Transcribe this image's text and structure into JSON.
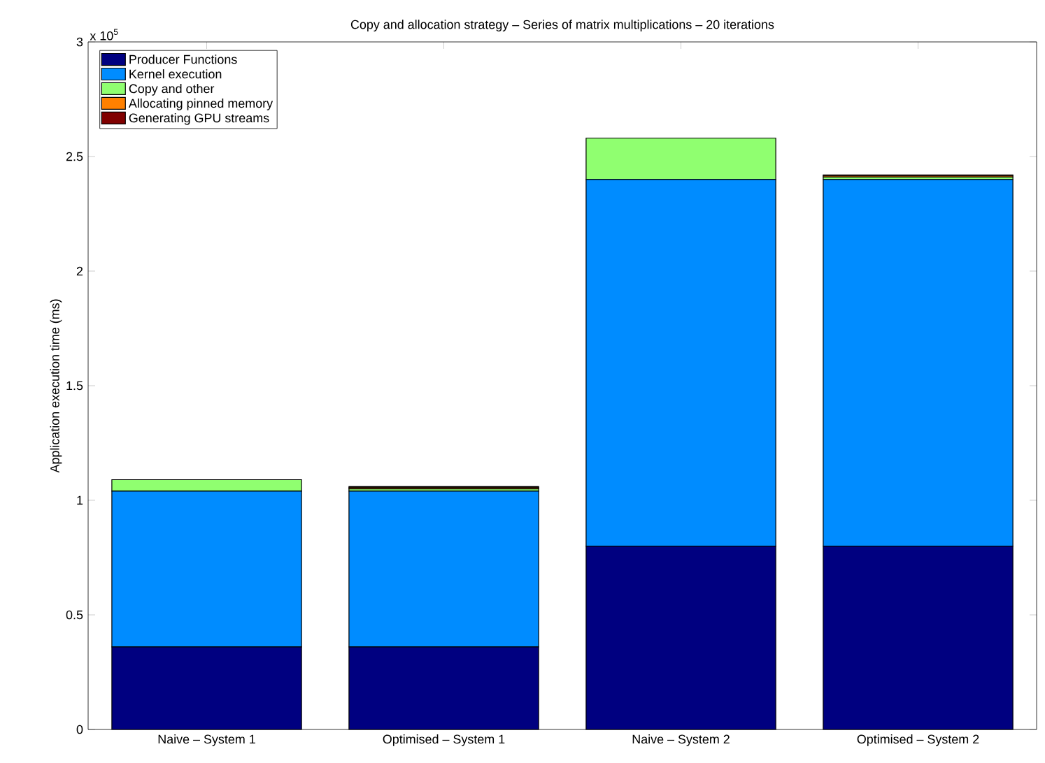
{
  "chart_data": {
    "type": "bar",
    "stacked": true,
    "title": "Copy and allocation strategy – Series of matrix multiplications – 20 iterations",
    "ylabel": "Application execution time (ms)",
    "categories": [
      "Naive – System 1",
      "Optimised – System 1",
      "Naive – System 2",
      "Optimised – System 2"
    ],
    "series": [
      {
        "name": "Producer Functions",
        "color": "#000080",
        "values": [
          0.36,
          0.36,
          0.8,
          0.8
        ]
      },
      {
        "name": "Kernel execution",
        "color": "#008cff",
        "values": [
          0.68,
          0.68,
          1.6,
          1.6
        ]
      },
      {
        "name": "Copy and other",
        "color": "#90ff70",
        "values": [
          0.05,
          0.01,
          0.18,
          0.01
        ]
      },
      {
        "name": "Allocating pinned memory",
        "color": "#ff8000",
        "values": [
          0,
          0.005,
          0,
          0.005
        ]
      },
      {
        "name": "Generating GPU streams",
        "color": "#800000",
        "values": [
          0,
          0.005,
          0,
          0.005
        ]
      }
    ],
    "ylim": [
      0,
      3
    ],
    "yticks": [
      0,
      0.5,
      1,
      1.5,
      2,
      2.5,
      3
    ],
    "annotations": [
      "x 10$^{5}$"
    ],
    "legend": "top left",
    "grid": false
  }
}
